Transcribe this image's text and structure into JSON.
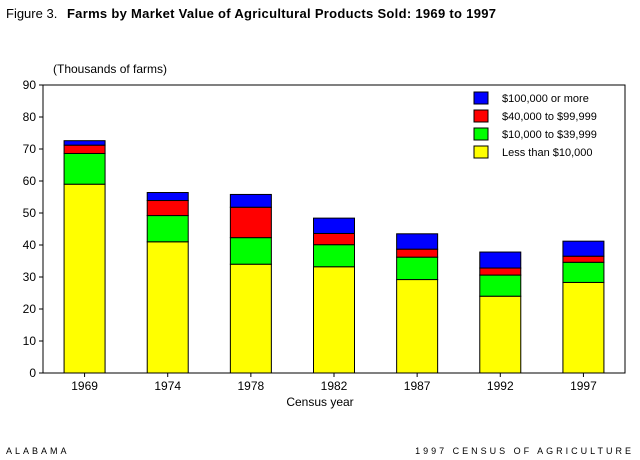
{
  "figure_label": "Figure 3.",
  "footer": {
    "left": "ALABAMA",
    "right": "1997 CENSUS OF AGRICULTURE"
  },
  "chart_data": {
    "type": "bar",
    "stacked": true,
    "title": "Farms by Market Value of Agricultural Products Sold: 1969 to 1997",
    "unit_label": "(Thousands of farms)",
    "xlabel": "Census year",
    "ylabel": "",
    "ylim": [
      0,
      90
    ],
    "yticks": [
      0,
      10,
      20,
      30,
      40,
      50,
      60,
      70,
      80,
      90
    ],
    "categories": [
      "1969",
      "1974",
      "1978",
      "1982",
      "1987",
      "1992",
      "1997"
    ],
    "legend_position": "top-right",
    "grid": false,
    "series": [
      {
        "name": "Less than $10,000",
        "color": "#ffff00",
        "values": [
          59,
          41,
          34,
          33.2,
          29.2,
          24,
          28.3
        ]
      },
      {
        "name": "$10,000 to $39,999",
        "color": "#00ff00",
        "values": [
          9.6,
          8.2,
          8.3,
          6.9,
          7,
          6.6,
          6.3
        ]
      },
      {
        "name": "$40,000 to $99,999",
        "color": "#ff0000",
        "values": [
          2.6,
          4.7,
          9.5,
          3.5,
          2.5,
          2.2,
          1.9
        ]
      },
      {
        "name": "$100,000 or more",
        "color": "#0000ff",
        "values": [
          1.4,
          2.5,
          4,
          4.8,
          4.8,
          5,
          4.7
        ]
      }
    ]
  }
}
